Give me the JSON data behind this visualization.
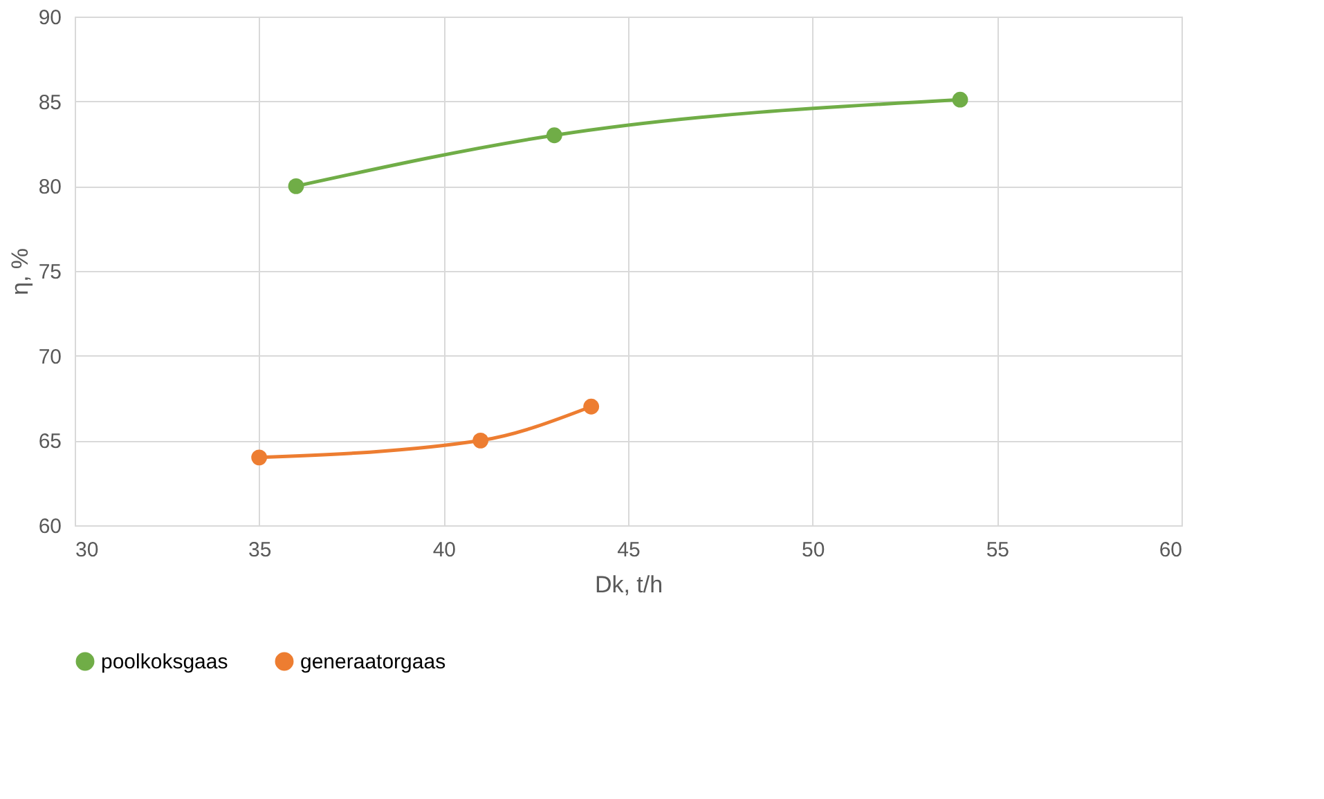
{
  "chart_data": {
    "type": "line",
    "xlabel": "Dk, t/h",
    "ylabel": "η, %",
    "xlim": [
      30,
      60
    ],
    "xticks": [
      30,
      35,
      40,
      45,
      50,
      55,
      60
    ],
    "ylim": [
      60,
      90
    ],
    "yticks": [
      60,
      65,
      70,
      75,
      80,
      85,
      90
    ],
    "grid": true,
    "legend": "bottom",
    "marker": "circle",
    "line_style": "solid",
    "series": [
      {
        "name": "poolkoksgaas",
        "color": "#70ad47",
        "x": [
          36,
          43,
          54
        ],
        "values": [
          80,
          83,
          85.1
        ]
      },
      {
        "name": "generaatorgaas",
        "color": "#ed7d31",
        "x": [
          35,
          41,
          44
        ],
        "values": [
          64,
          65,
          67
        ]
      }
    ]
  }
}
